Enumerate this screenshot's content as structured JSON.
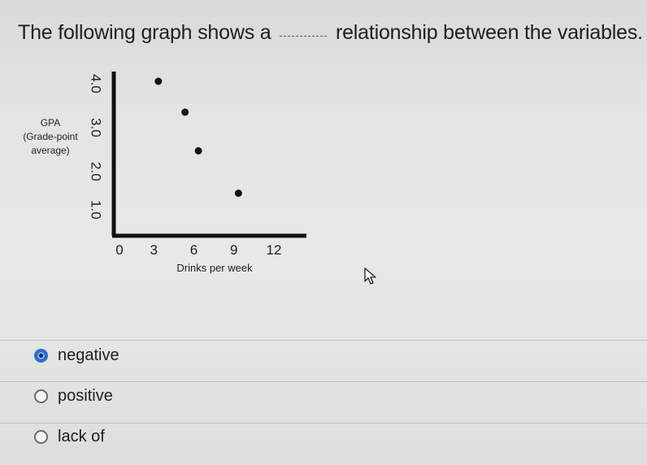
{
  "question": {
    "prefix": "The following graph shows a",
    "suffix": "relationship between the variables."
  },
  "chart_data": {
    "type": "scatter",
    "ylabel": [
      "GPA",
      "(Grade-point",
      "average)"
    ],
    "xlabel": "Drinks per week",
    "x_ticks": [
      0,
      3,
      6,
      9,
      12
    ],
    "y_ticks": [
      "4.0",
      "3.0",
      "2.0",
      "1.0"
    ],
    "xlim": [
      0,
      12
    ],
    "ylim": [
      0,
      4.0
    ],
    "points": [
      {
        "x": 2,
        "y": 4.0
      },
      {
        "x": 4,
        "y": 3.2
      },
      {
        "x": 5,
        "y": 2.2
      },
      {
        "x": 8,
        "y": 1.1
      }
    ],
    "point_color": "#111111",
    "axis_color": "#111111"
  },
  "options": [
    {
      "label": "negative",
      "selected": true
    },
    {
      "label": "positive",
      "selected": false
    },
    {
      "label": "lack of",
      "selected": false
    }
  ],
  "accent_color": "#2a6fc6"
}
